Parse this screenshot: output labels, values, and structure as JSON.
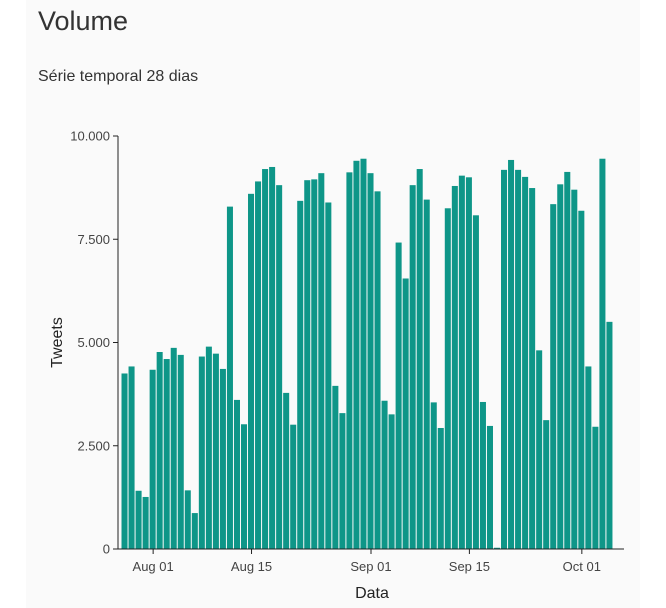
{
  "page": {
    "title": "Volume",
    "subtitle": "Série temporal 28 dias"
  },
  "colors": {
    "bar": "#0e9688",
    "axis": "#222222",
    "card": "#fafafa"
  },
  "chart_data": {
    "type": "bar",
    "title": "Volume",
    "subtitle": "Série temporal 28 dias",
    "xlabel": "Data",
    "ylabel": "Tweets",
    "ylim": [
      0,
      10000
    ],
    "xlim": [
      "2021-07-27",
      "2021-10-07"
    ],
    "grid": false,
    "yticks": [
      0,
      2500,
      5000,
      7500,
      10000
    ],
    "ytick_labels": [
      "0",
      "2.500",
      "5.000",
      "7.500",
      "10.000"
    ],
    "xticks": [
      "2021-08-01",
      "2021-08-15",
      "2021-09-01",
      "2021-09-15",
      "2021-10-01"
    ],
    "xtick_labels": [
      "Aug 01",
      "Aug 15",
      "Sep 01",
      "Sep 15",
      "Oct 01"
    ],
    "series": [
      {
        "x": [
          "2021-07-28",
          "2021-07-29",
          "2021-07-30",
          "2021-07-31",
          "2021-08-01",
          "2021-08-02",
          "2021-08-03",
          "2021-08-04",
          "2021-08-05",
          "2021-08-06",
          "2021-08-07",
          "2021-08-08",
          "2021-08-09",
          "2021-08-10",
          "2021-08-11",
          "2021-08-12",
          "2021-08-13",
          "2021-08-14",
          "2021-08-15",
          "2021-08-16",
          "2021-08-17",
          "2021-08-18",
          "2021-08-19",
          "2021-08-20",
          "2021-08-21",
          "2021-08-22",
          "2021-08-23",
          "2021-08-24",
          "2021-08-25",
          "2021-08-26",
          "2021-08-27",
          "2021-08-28",
          "2021-08-29",
          "2021-08-30",
          "2021-08-31",
          "2021-09-01",
          "2021-09-02",
          "2021-09-03",
          "2021-09-04",
          "2021-09-05",
          "2021-09-06",
          "2021-09-07",
          "2021-09-08",
          "2021-09-09",
          "2021-09-10",
          "2021-09-11",
          "2021-09-12",
          "2021-09-13",
          "2021-09-14",
          "2021-09-15",
          "2021-09-16",
          "2021-09-17",
          "2021-09-18",
          "2021-09-19",
          "2021-09-20",
          "2021-09-21",
          "2021-09-22",
          "2021-09-23",
          "2021-09-24",
          "2021-09-25",
          "2021-09-26",
          "2021-09-27",
          "2021-09-28",
          "2021-09-29",
          "2021-09-30",
          "2021-10-01",
          "2021-10-02",
          "2021-10-03",
          "2021-10-04",
          "2021-10-05"
        ],
        "values": [
          4250,
          4420,
          1410,
          1260,
          4340,
          4770,
          4600,
          4870,
          4700,
          1420,
          870,
          4660,
          4900,
          4730,
          4360,
          8290,
          3610,
          3020,
          8600,
          8900,
          9200,
          9250,
          8810,
          3780,
          3010,
          8430,
          8930,
          8950,
          9100,
          8390,
          3950,
          3290,
          9120,
          9400,
          9450,
          9100,
          8660,
          3590,
          3260,
          7420,
          6550,
          8810,
          9200,
          8460,
          3550,
          2930,
          8250,
          8790,
          9040,
          9000,
          8080,
          3560,
          2980,
          30,
          9180,
          9420,
          9180,
          9010,
          8740,
          4810,
          3120,
          8350,
          8830,
          9130,
          8700,
          8190,
          4420,
          2960,
          9450,
          5500
        ]
      }
    ]
  }
}
